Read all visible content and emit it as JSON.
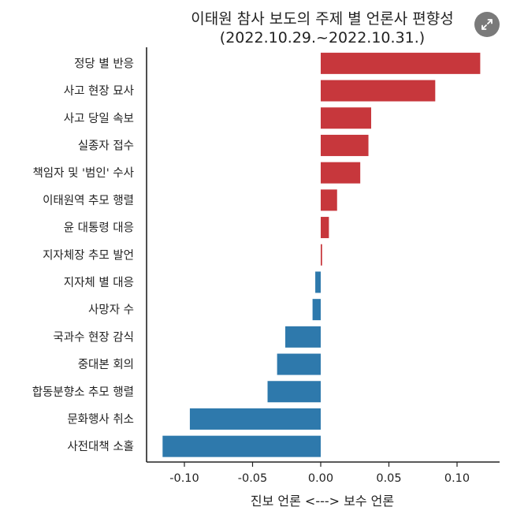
{
  "chart_data": {
    "type": "bar",
    "orientation": "horizontal",
    "title": "이태원 참사 보도의 주제 별 언론사 편향성",
    "subtitle": "(2022.10.29.~2022.10.31.)",
    "xlabel": "진보 언론 <---> 보수 언론",
    "ylabel": "",
    "xlim": [
      -0.13,
      0.13
    ],
    "xticks": [
      -0.1,
      -0.05,
      0.0,
      0.05,
      0.1
    ],
    "xtick_labels": [
      "-0.10",
      "-0.05",
      "0.00",
      "0.05",
      "0.10"
    ],
    "grid": false,
    "legend": "none",
    "positive_color": "#c7373c",
    "negative_color": "#2e79ac",
    "categories": [
      "정당 별 반응",
      "사고 현장 묘사",
      "사고 당일 속보",
      "실종자 접수",
      "책임자 및 '범인' 수사",
      "이태원역 추모 행렬",
      "윤 대통령 대응",
      "지자체장 추모 발언",
      "지자체 별 대응",
      "사망자 수",
      "국과수 현장 감식",
      "중대본 회의",
      "합동분향소 추모 행렬",
      "문화행사 취소",
      "사전대책 소홀"
    ],
    "values": [
      0.117,
      0.084,
      0.037,
      0.035,
      0.029,
      0.012,
      0.006,
      0.001,
      -0.004,
      -0.006,
      -0.026,
      -0.032,
      -0.039,
      -0.096,
      -0.116
    ]
  },
  "ui": {
    "expand_icon": "expand-arrows-icon"
  }
}
